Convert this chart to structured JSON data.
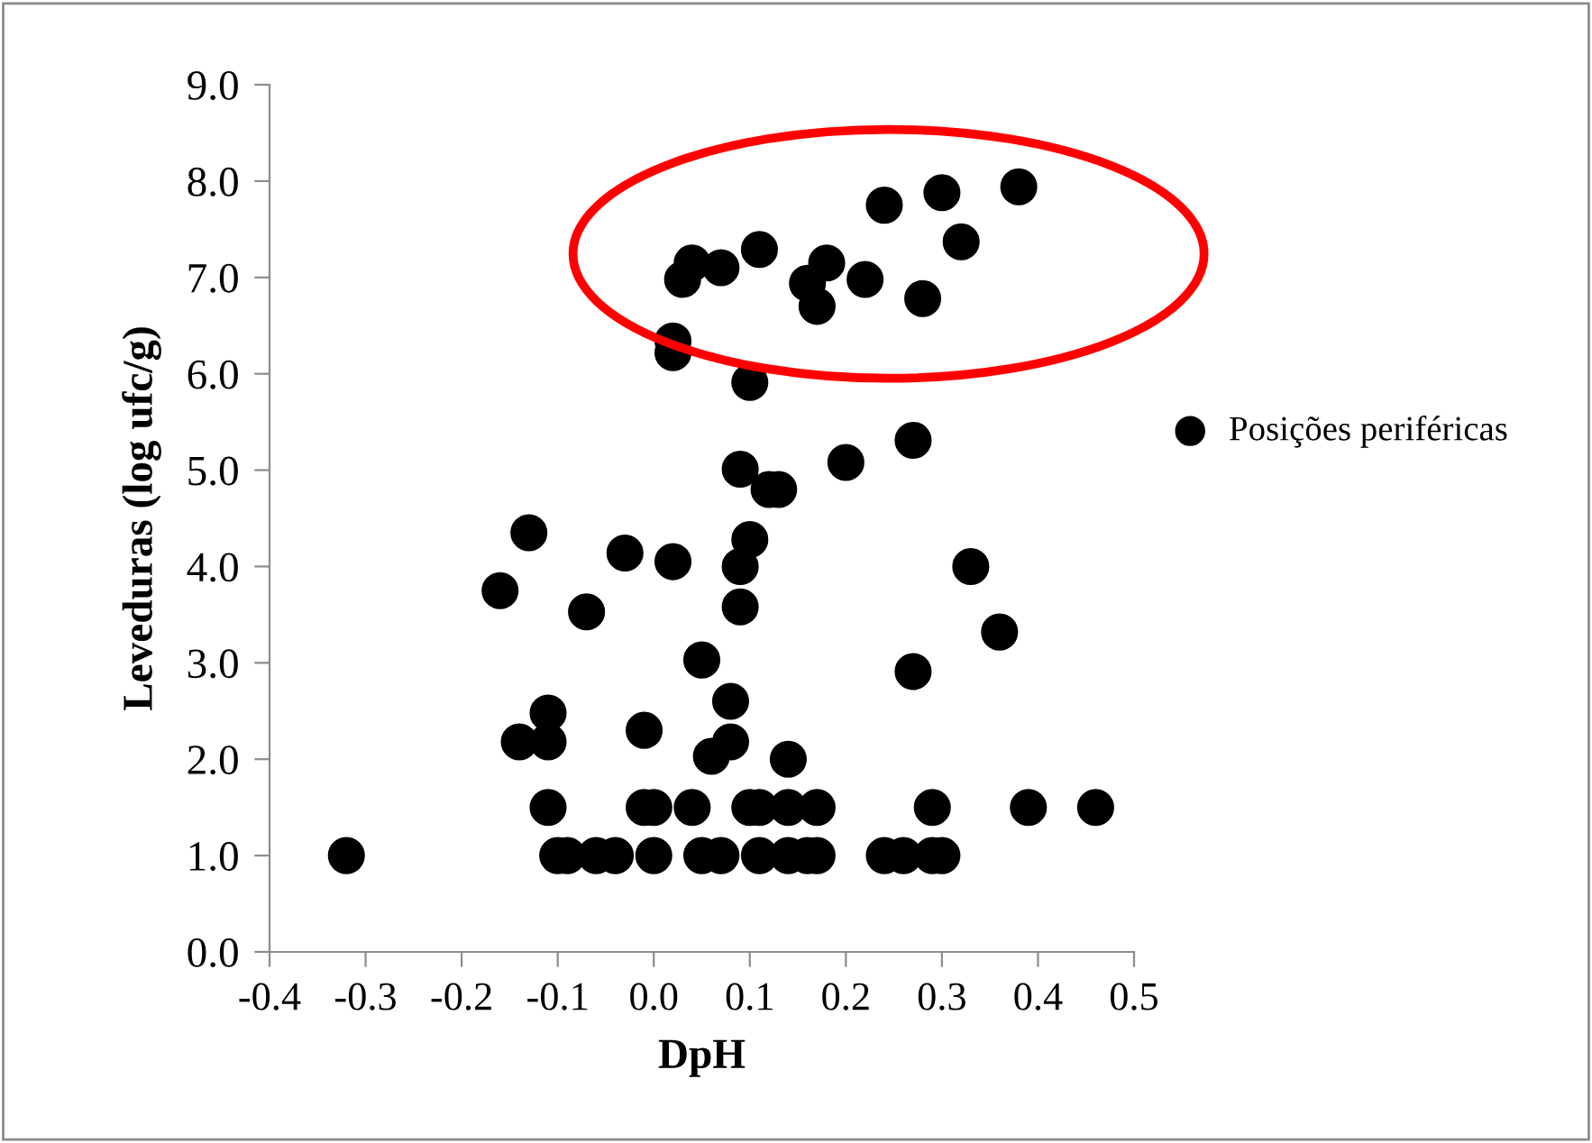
{
  "chart_data": {
    "type": "scatter",
    "xlabel": "DpH",
    "ylabel": "Leveduras (log ufc/g)",
    "xlim": [
      -0.4,
      0.5
    ],
    "ylim": [
      0,
      9
    ],
    "xticks": [
      {
        "value": -0.4,
        "label": "-0.4"
      },
      {
        "value": -0.3,
        "label": "-0.3"
      },
      {
        "value": -0.2,
        "label": "-0.2"
      },
      {
        "value": -0.1,
        "label": "-0.1"
      },
      {
        "value": 0,
        "label": "0.0"
      },
      {
        "value": 0.1,
        "label": "0.1"
      },
      {
        "value": 0.2,
        "label": "0.2"
      },
      {
        "value": 0.3,
        "label": "0.3"
      },
      {
        "value": 0.4,
        "label": "0.4"
      },
      {
        "value": 0.5,
        "label": "0.5"
      }
    ],
    "yticks": [
      {
        "value": 0,
        "label": "0.0"
      },
      {
        "value": 1,
        "label": "1.0"
      },
      {
        "value": 2,
        "label": "2.0"
      },
      {
        "value": 3,
        "label": "3.0"
      },
      {
        "value": 4,
        "label": "4.0"
      },
      {
        "value": 5,
        "label": "5.0"
      },
      {
        "value": 6,
        "label": "6.0"
      },
      {
        "value": 7,
        "label": "7.0"
      },
      {
        "value": 8,
        "label": "8.0"
      },
      {
        "value": 9,
        "label": "9.0"
      }
    ],
    "grid": false,
    "legend": "right",
    "marker": "circle",
    "series": [
      {
        "name": "Posições periféricas",
        "color": "#000000",
        "x": [
          -0.32,
          0.02,
          0.02,
          0.03,
          0.04,
          0.07,
          0.11,
          0.1,
          0.16,
          0.17,
          0.18,
          0.22,
          0.24,
          0.28,
          0.3,
          0.32,
          0.38,
          0.27,
          0.2,
          0.09,
          0.12,
          0.13,
          0.1,
          0.09,
          0.09,
          0.33,
          0.36,
          0.27,
          0.05,
          0.08,
          0.08,
          0.06,
          0.14,
          -0.01,
          0.02,
          -0.03,
          -0.07,
          -0.13,
          -0.16,
          -0.11,
          -0.11,
          -0.14,
          -0.11,
          -0.01,
          0.0,
          0.04,
          0.1,
          0.11,
          0.14,
          0.17,
          0.29,
          0.39,
          0.46,
          -0.1,
          -0.09,
          -0.06,
          -0.04,
          0.0,
          0.05,
          0.07,
          0.11,
          0.14,
          0.16,
          0.17,
          0.24,
          0.26,
          0.29,
          0.3
        ],
        "values": [
          1.0,
          6.34,
          6.22,
          6.98,
          7.15,
          7.1,
          7.29,
          5.91,
          6.94,
          6.7,
          7.15,
          6.98,
          7.75,
          6.78,
          7.88,
          7.37,
          7.94,
          5.31,
          5.08,
          5.01,
          4.8,
          4.8,
          4.28,
          4.0,
          3.58,
          4.0,
          3.32,
          2.91,
          3.03,
          2.6,
          2.18,
          2.03,
          2.0,
          2.3,
          4.05,
          4.14,
          3.53,
          4.35,
          3.75,
          2.48,
          2.18,
          2.18,
          1.5,
          1.5,
          1.5,
          1.5,
          1.5,
          1.5,
          1.5,
          1.5,
          1.5,
          1.5,
          1.5,
          1.0,
          1.0,
          1.0,
          1.0,
          1.0,
          1.0,
          1.0,
          1.0,
          1.0,
          1.0,
          1.0,
          1.0,
          1.0,
          1.0,
          1.0
        ]
      }
    ]
  }
}
